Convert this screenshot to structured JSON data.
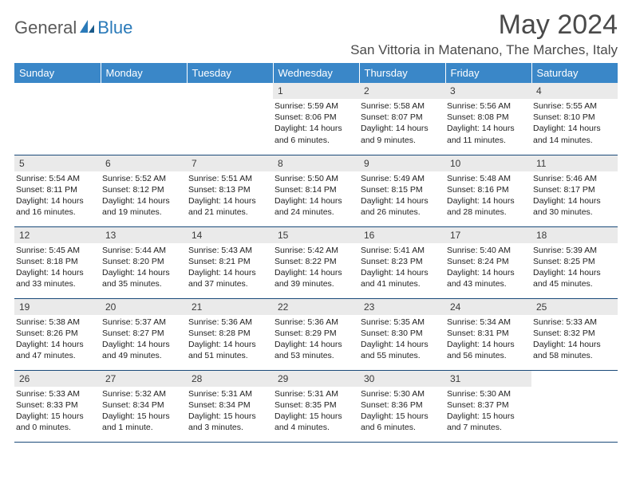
{
  "logo": {
    "general": "General",
    "blue": "Blue"
  },
  "title": "May 2024",
  "location": "San Vittoria in Matenano, The Marches, Italy",
  "day_headers": [
    "Sunday",
    "Monday",
    "Tuesday",
    "Wednesday",
    "Thursday",
    "Friday",
    "Saturday"
  ],
  "colors": {
    "header_bg": "#3a87c8",
    "daynum_bg": "#eaeaea",
    "row_border": "#1a4a7a",
    "logo_blue": "#2a7ab9",
    "text_gray": "#4a4a4a"
  },
  "weeks": [
    [
      {
        "n": "",
        "sr": "",
        "ss": "",
        "dl": ""
      },
      {
        "n": "",
        "sr": "",
        "ss": "",
        "dl": ""
      },
      {
        "n": "",
        "sr": "",
        "ss": "",
        "dl": ""
      },
      {
        "n": "1",
        "sr": "5:59 AM",
        "ss": "8:06 PM",
        "dl": "14 hours and 6 minutes."
      },
      {
        "n": "2",
        "sr": "5:58 AM",
        "ss": "8:07 PM",
        "dl": "14 hours and 9 minutes."
      },
      {
        "n": "3",
        "sr": "5:56 AM",
        "ss": "8:08 PM",
        "dl": "14 hours and 11 minutes."
      },
      {
        "n": "4",
        "sr": "5:55 AM",
        "ss": "8:10 PM",
        "dl": "14 hours and 14 minutes."
      }
    ],
    [
      {
        "n": "5",
        "sr": "5:54 AM",
        "ss": "8:11 PM",
        "dl": "14 hours and 16 minutes."
      },
      {
        "n": "6",
        "sr": "5:52 AM",
        "ss": "8:12 PM",
        "dl": "14 hours and 19 minutes."
      },
      {
        "n": "7",
        "sr": "5:51 AM",
        "ss": "8:13 PM",
        "dl": "14 hours and 21 minutes."
      },
      {
        "n": "8",
        "sr": "5:50 AM",
        "ss": "8:14 PM",
        "dl": "14 hours and 24 minutes."
      },
      {
        "n": "9",
        "sr": "5:49 AM",
        "ss": "8:15 PM",
        "dl": "14 hours and 26 minutes."
      },
      {
        "n": "10",
        "sr": "5:48 AM",
        "ss": "8:16 PM",
        "dl": "14 hours and 28 minutes."
      },
      {
        "n": "11",
        "sr": "5:46 AM",
        "ss": "8:17 PM",
        "dl": "14 hours and 30 minutes."
      }
    ],
    [
      {
        "n": "12",
        "sr": "5:45 AM",
        "ss": "8:18 PM",
        "dl": "14 hours and 33 minutes."
      },
      {
        "n": "13",
        "sr": "5:44 AM",
        "ss": "8:20 PM",
        "dl": "14 hours and 35 minutes."
      },
      {
        "n": "14",
        "sr": "5:43 AM",
        "ss": "8:21 PM",
        "dl": "14 hours and 37 minutes."
      },
      {
        "n": "15",
        "sr": "5:42 AM",
        "ss": "8:22 PM",
        "dl": "14 hours and 39 minutes."
      },
      {
        "n": "16",
        "sr": "5:41 AM",
        "ss": "8:23 PM",
        "dl": "14 hours and 41 minutes."
      },
      {
        "n": "17",
        "sr": "5:40 AM",
        "ss": "8:24 PM",
        "dl": "14 hours and 43 minutes."
      },
      {
        "n": "18",
        "sr": "5:39 AM",
        "ss": "8:25 PM",
        "dl": "14 hours and 45 minutes."
      }
    ],
    [
      {
        "n": "19",
        "sr": "5:38 AM",
        "ss": "8:26 PM",
        "dl": "14 hours and 47 minutes."
      },
      {
        "n": "20",
        "sr": "5:37 AM",
        "ss": "8:27 PM",
        "dl": "14 hours and 49 minutes."
      },
      {
        "n": "21",
        "sr": "5:36 AM",
        "ss": "8:28 PM",
        "dl": "14 hours and 51 minutes."
      },
      {
        "n": "22",
        "sr": "5:36 AM",
        "ss": "8:29 PM",
        "dl": "14 hours and 53 minutes."
      },
      {
        "n": "23",
        "sr": "5:35 AM",
        "ss": "8:30 PM",
        "dl": "14 hours and 55 minutes."
      },
      {
        "n": "24",
        "sr": "5:34 AM",
        "ss": "8:31 PM",
        "dl": "14 hours and 56 minutes."
      },
      {
        "n": "25",
        "sr": "5:33 AM",
        "ss": "8:32 PM",
        "dl": "14 hours and 58 minutes."
      }
    ],
    [
      {
        "n": "26",
        "sr": "5:33 AM",
        "ss": "8:33 PM",
        "dl": "15 hours and 0 minutes."
      },
      {
        "n": "27",
        "sr": "5:32 AM",
        "ss": "8:34 PM",
        "dl": "15 hours and 1 minute."
      },
      {
        "n": "28",
        "sr": "5:31 AM",
        "ss": "8:34 PM",
        "dl": "15 hours and 3 minutes."
      },
      {
        "n": "29",
        "sr": "5:31 AM",
        "ss": "8:35 PM",
        "dl": "15 hours and 4 minutes."
      },
      {
        "n": "30",
        "sr": "5:30 AM",
        "ss": "8:36 PM",
        "dl": "15 hours and 6 minutes."
      },
      {
        "n": "31",
        "sr": "5:30 AM",
        "ss": "8:37 PM",
        "dl": "15 hours and 7 minutes."
      },
      {
        "n": "",
        "sr": "",
        "ss": "",
        "dl": ""
      }
    ]
  ],
  "labels": {
    "sunrise": "Sunrise:",
    "sunset": "Sunset:",
    "daylight": "Daylight:"
  }
}
